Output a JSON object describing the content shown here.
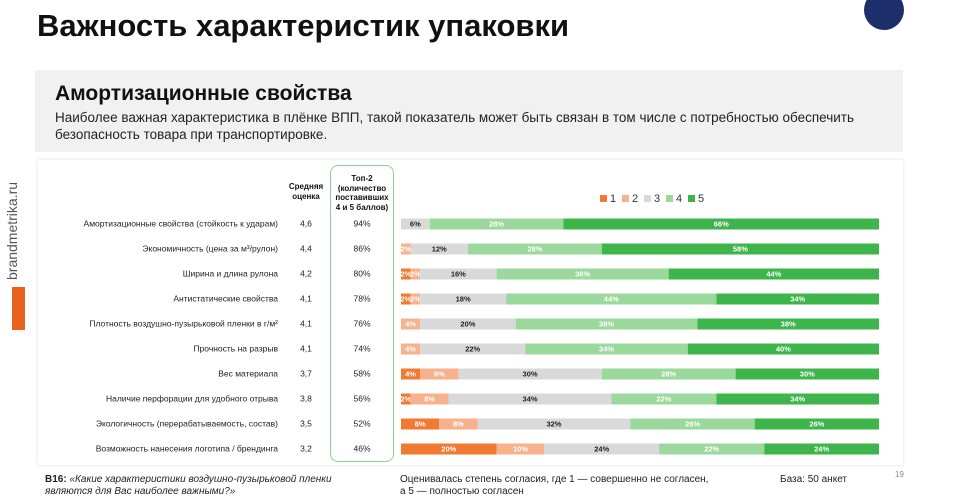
{
  "header": {
    "title": "Важность характеристик упаковки",
    "section_title": "Амортизационные свойства",
    "description": "Наиболее важная характеристика в плёнке ВПП, такой показатель может быть связан в том числе с потребностью обеспечить безопасность товара при транспортировке.",
    "side_text": "brandmetrika.ru"
  },
  "table": {
    "mean_header": "Средняя оценка",
    "top2_header": "Топ-2 (количество поставивших 4 и 5 баллов)",
    "mean": [
      "4,6",
      "4,4",
      "4,2",
      "4,1",
      "4,1",
      "4,1",
      "3,7",
      "3,8",
      "3,5",
      "3,2"
    ],
    "top2": [
      "94%",
      "86%",
      "80%",
      "78%",
      "76%",
      "74%",
      "58%",
      "56%",
      "52%",
      "46%"
    ]
  },
  "chart_data": {
    "type": "stacked_bar_horizontal",
    "categories": [
      "Амортизационные свойства (стойкость к ударам)",
      "Экономичность (цена за м³/рулон)",
      "Ширина и длина рулона",
      "Антистатические свойства",
      "Плотность воздушно-пузырьковой пленки в г/м²",
      "Прочность на разрыв",
      "Вес материала",
      "Наличие перфорации для удобного отрыва",
      "Экологичность (перерабатываемость, состав)",
      "Возможность нанесения логотипа / брендинга"
    ],
    "xlim": [
      0,
      100
    ],
    "legend": "top",
    "series": [
      {
        "name": "1",
        "color": "#f07a32",
        "values": [
          0,
          0,
          2,
          2,
          0,
          0,
          4,
          2,
          8,
          20
        ],
        "value_labels": [
          null,
          null,
          "2%",
          "2%",
          null,
          null,
          "4%",
          "2%",
          "8%",
          "20%"
        ]
      },
      {
        "name": "2",
        "color": "#f7b18c",
        "values": [
          0,
          2,
          2,
          2,
          4,
          4,
          8,
          8,
          8,
          10
        ],
        "value_labels": [
          null,
          "2%",
          "2%",
          "2%",
          "4%",
          "4%",
          "8%",
          "8%",
          "8%",
          "10%"
        ]
      },
      {
        "name": "3",
        "color": "#d9d9d9",
        "values": [
          6,
          12,
          16,
          18,
          20,
          22,
          30,
          34,
          32,
          24
        ],
        "value_labels": [
          "6%",
          "12%",
          "16%",
          "18%",
          "20%",
          "22%",
          "30%",
          "34%",
          "32%",
          "24%"
        ]
      },
      {
        "name": "4",
        "color": "#9bd89b",
        "values": [
          28,
          28,
          36,
          44,
          38,
          34,
          28,
          22,
          26,
          22
        ],
        "value_labels": [
          "28%",
          "28%",
          "36%",
          "44%",
          "38%",
          "34%",
          "28%",
          "22%",
          "26%",
          "22%"
        ]
      },
      {
        "name": "5",
        "color": "#3db54a",
        "values": [
          66,
          58,
          44,
          34,
          38,
          40,
          30,
          34,
          26,
          24
        ],
        "value_labels": [
          "66%",
          "58%",
          "44%",
          "34%",
          "38%",
          "40%",
          "30%",
          "34%",
          "26%",
          "24%"
        ]
      }
    ]
  },
  "footer": {
    "question_code": "B16:",
    "question": "«Какие характеристики воздушно-пузырьковой пленки являются для Вас наиболее важными?»",
    "note": "Оценивалась степень согласия, где 1 — совершенно не согласен, а 5 — полностью согласен",
    "base": "База: 50 анкет",
    "page": "19"
  }
}
